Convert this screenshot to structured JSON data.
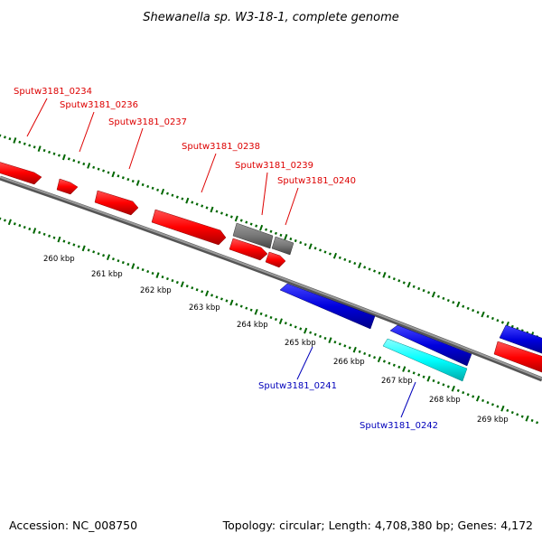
{
  "title": "Shewanella sp. W3-18-1, complete genome",
  "accession": "Accession: NC_008750",
  "topology": "Topology: circular; Length: 4,708,380 bp; Genes: 4,172",
  "colors": {
    "forward_gene": "#ff0000",
    "reverse_gene": "#0000dd",
    "rna_gene": "#777777",
    "highlight_gene": "#00ffff",
    "forward_label": "#dd0000",
    "reverse_label": "#0000bb",
    "backbone": "#808080",
    "tick": "#006600"
  },
  "scale_labels": [
    "260 kbp",
    "261 kbp",
    "262 kbp",
    "263 kbp",
    "264 kbp",
    "265 kbp",
    "266 kbp",
    "267 kbp",
    "268 kbp",
    "269 kbp"
  ],
  "gene_labels_forward": [
    "Sputw3181_0234",
    "Sputw3181_0236",
    "Sputw3181_0237",
    "Sputw3181_0238",
    "Sputw3181_0239",
    "Sputw3181_0240"
  ],
  "gene_labels_reverse": [
    "Sputw3181_0241",
    "Sputw3181_0242"
  ]
}
